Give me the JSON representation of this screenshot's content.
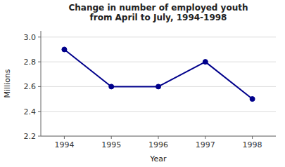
{
  "chart_data": {
    "type": "line",
    "title": "Change in number of employed youth\nfrom April to July, 1994-1998",
    "xlabel": "Year",
    "ylabel": "Millions",
    "x": [
      1994,
      1995,
      1996,
      1997,
      1998
    ],
    "values": [
      2.9,
      2.6,
      2.6,
      2.8,
      2.5
    ],
    "color": "#00008B",
    "marker": "circle",
    "xlim": [
      1993.5,
      1998.5
    ],
    "xticks": [
      1994,
      1995,
      1996,
      1997,
      1998
    ],
    "ylim": [
      2.2,
      3.05
    ],
    "yticks": [
      2.2,
      2.4,
      2.6,
      2.8,
      {
        "value": 3.0,
        "label": "3.0"
      }
    ],
    "grid": true
  }
}
